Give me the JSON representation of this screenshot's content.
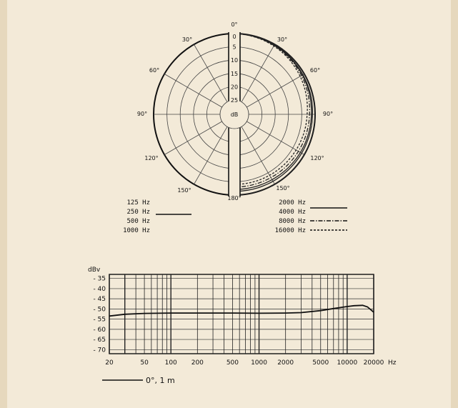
{
  "background": "#f3ead8",
  "border_color": "#e6d8bd",
  "chart_data": [
    {
      "type": "polar",
      "angle_labels": [
        "0°",
        "30°",
        "60°",
        "90°",
        "120°",
        "150°",
        "180°",
        "150°",
        "120°",
        "90°",
        "60°",
        "30°"
      ],
      "radial_ticks": [
        "0",
        "5",
        "10",
        "15",
        "20",
        "25"
      ],
      "center_label": "dB",
      "legend_left": [
        {
          "name": "125 Hz"
        },
        {
          "name": "250 Hz"
        },
        {
          "name": "500 Hz"
        },
        {
          "name": "1000 Hz"
        }
      ],
      "legend_right": [
        {
          "name": "2000 Hz",
          "style": "solid"
        },
        {
          "name": "4000 Hz",
          "style": "solid"
        },
        {
          "name": "8000 Hz",
          "style": "dash-dot"
        },
        {
          "name": "16000 Hz",
          "style": "dashed"
        }
      ],
      "series": [
        {
          "name": "125–1000 Hz",
          "style": "solid",
          "theta": [
            0,
            30,
            60,
            90,
            120,
            150,
            180
          ],
          "r_db": [
            0,
            0,
            0,
            0,
            0,
            0,
            0
          ]
        },
        {
          "name": "2000 Hz",
          "style": "solid",
          "theta": [
            0,
            20,
            40,
            60,
            80,
            90,
            110,
            130,
            150,
            170,
            180
          ],
          "r_db": [
            0,
            0.2,
            0.4,
            0.6,
            0.8,
            1.0,
            1.1,
            1.2,
            1.3,
            1.4,
            1.4
          ]
        },
        {
          "name": "4000 Hz",
          "style": "solid",
          "theta": [
            0,
            20,
            40,
            60,
            80,
            90,
            110,
            130,
            150,
            170,
            180
          ],
          "r_db": [
            0,
            0.2,
            0.5,
            0.8,
            1.2,
            1.4,
            1.6,
            1.8,
            2.0,
            2.1,
            2.1
          ]
        },
        {
          "name": "8000 Hz",
          "style": "dash-dot",
          "theta": [
            0,
            20,
            40,
            60,
            80,
            90,
            110,
            130,
            150,
            170,
            180
          ],
          "r_db": [
            0,
            0.3,
            0.7,
            1.2,
            1.8,
            2.1,
            2.4,
            2.7,
            2.9,
            3.0,
            3.0
          ]
        },
        {
          "name": "16000 Hz",
          "style": "dashed",
          "theta": [
            0,
            20,
            40,
            60,
            80,
            90,
            110,
            130,
            150,
            170,
            180
          ],
          "r_db": [
            0,
            0.4,
            1.0,
            1.8,
            2.6,
            3.0,
            3.4,
            3.7,
            3.9,
            4.0,
            4.0
          ]
        }
      ],
      "r_range_db": [
        0,
        25
      ]
    },
    {
      "type": "line",
      "ylabel": "dBv",
      "yticks": [
        "- 35",
        "- 40",
        "- 45",
        "- 50",
        "- 55",
        "- 60",
        "- 65",
        "- 70"
      ],
      "ylim": [
        -72,
        -33
      ],
      "xscale": "log",
      "xlim": [
        20,
        20000
      ],
      "xticks": [
        "20",
        "50",
        "100",
        "200",
        "500",
        "1000",
        "2000",
        "5000",
        "10000",
        "20000"
      ],
      "xunit": "Hz",
      "legend": "0°, 1 m",
      "series": [
        {
          "name": "0°, 1 m",
          "x": [
            20,
            30,
            50,
            100,
            200,
            500,
            1000,
            2000,
            3000,
            5000,
            7000,
            10000,
            12000,
            15000,
            17000,
            20000
          ],
          "y": [
            -53.5,
            -52.6,
            -52.2,
            -52.0,
            -52.0,
            -52.0,
            -52.1,
            -52.0,
            -51.8,
            -50.8,
            -49.8,
            -48.8,
            -48.4,
            -48.2,
            -49.0,
            -51.6
          ]
        }
      ]
    }
  ]
}
